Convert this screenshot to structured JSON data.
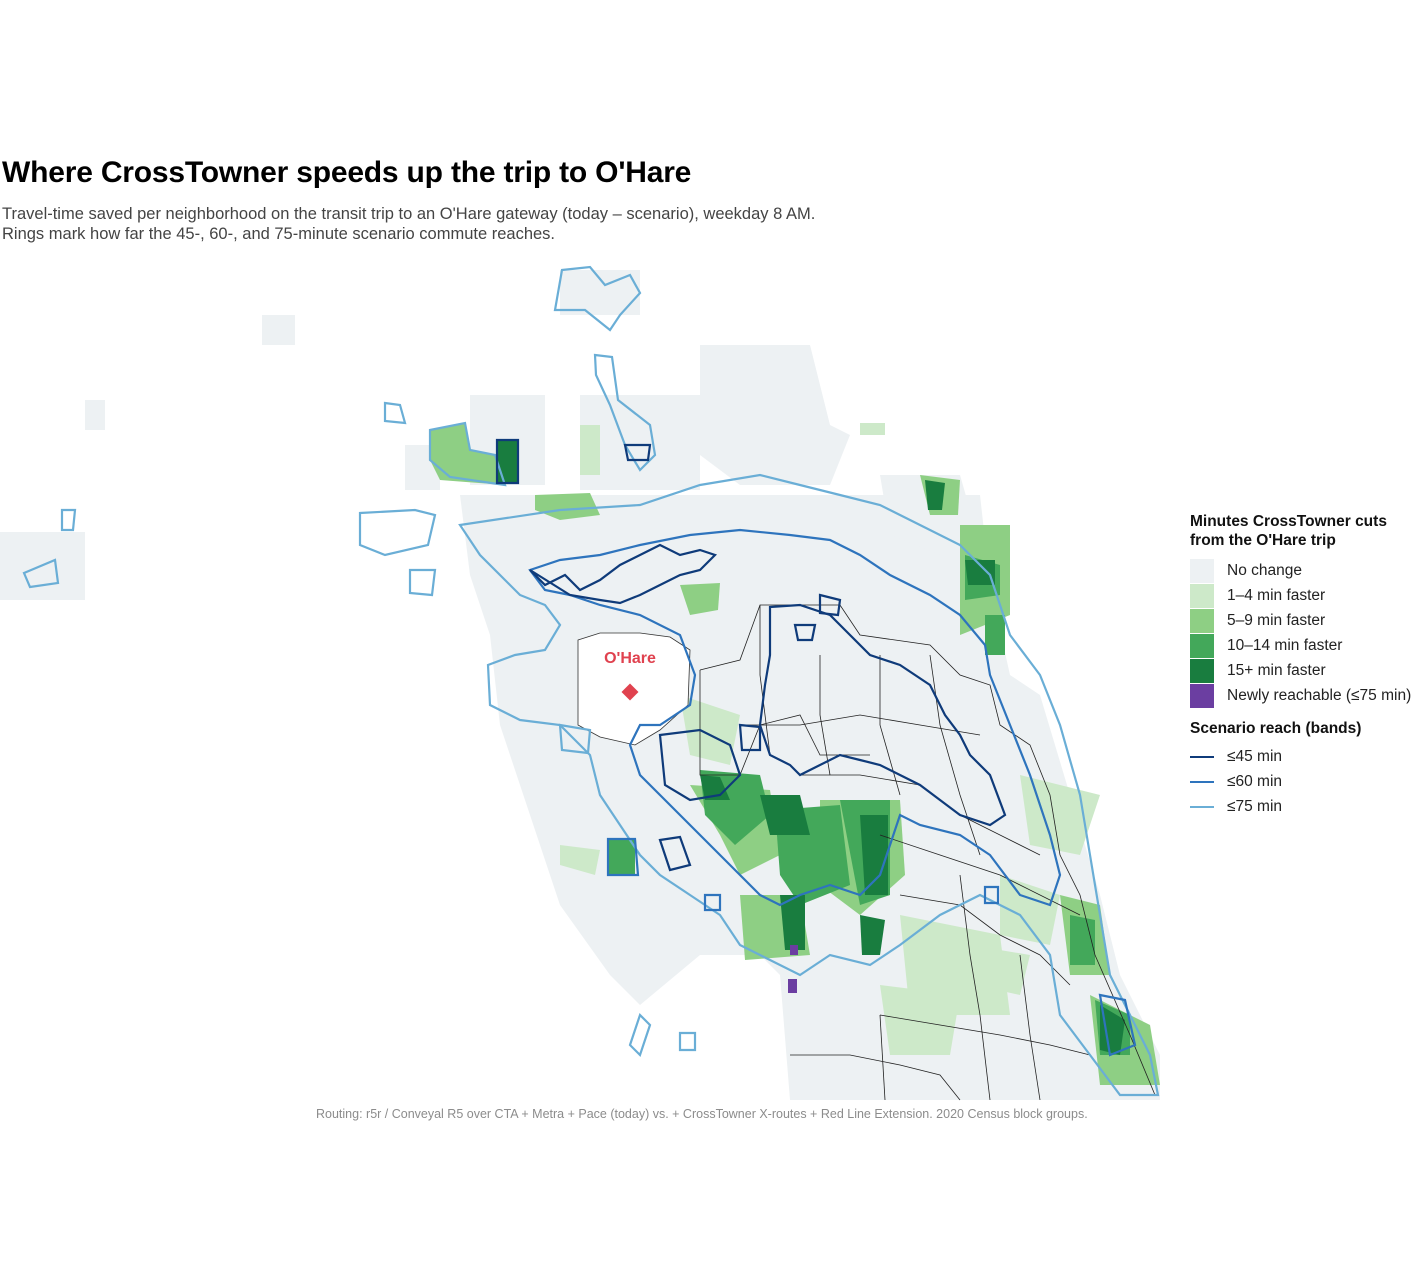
{
  "title": "Where CrossTowner speeds up the trip to O'Hare",
  "subtitle": "Travel-time saved per neighborhood on the transit trip to an O'Hare gateway (today – scenario), weekday 8 AM. Rings mark how far the 45-, 60-, and 75-minute scenario commute reaches.",
  "map": {
    "airport_label": "O'Hare",
    "airport_color": "#e0424f"
  },
  "legend": {
    "fill_title": "Minutes CrossTowner cuts from the O'Hare trip",
    "fill_items": [
      {
        "label": "No change",
        "color": "#edf1f3"
      },
      {
        "label": "1–4 min faster",
        "color": "#cde9c9"
      },
      {
        "label": "5–9 min faster",
        "color": "#8ecf84"
      },
      {
        "label": "10–14 min faster",
        "color": "#43a85a"
      },
      {
        "label": "15+ min faster",
        "color": "#197d3f"
      },
      {
        "label": "Newly reachable (≤75 min)",
        "color": "#6b3ea1"
      }
    ],
    "band_title": "Scenario reach (bands)",
    "band_items": [
      {
        "label": "≤45 min",
        "color": "#0f3b7a"
      },
      {
        "label": "≤60 min",
        "color": "#2e74bd"
      },
      {
        "label": "≤75 min",
        "color": "#6aaed6"
      }
    ]
  },
  "caption": "Routing: r5r / Conveyal R5 over CTA + Metra + Pace (today) vs. + CrossTowner X-routes + Red Line Extension. 2020 Census block groups."
}
